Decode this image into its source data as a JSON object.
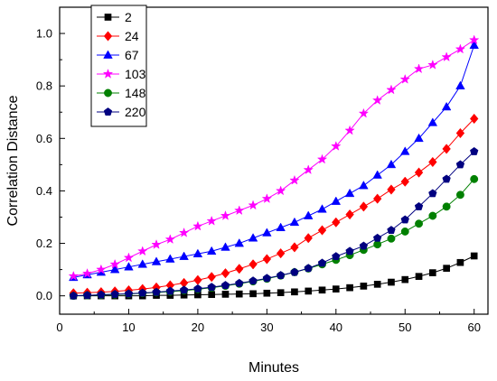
{
  "chart_data": {
    "type": "line",
    "title": "",
    "xlabel": "Minutes",
    "ylabel": "Correlation Distance",
    "xlim": [
      0,
      62
    ],
    "ylim": [
      -0.07,
      1.1
    ],
    "xticks": [
      0,
      10,
      20,
      30,
      40,
      50,
      60
    ],
    "yticks": [
      0.0,
      0.2,
      0.4,
      0.6,
      0.8,
      1.0
    ],
    "xtick_labels": [
      "0",
      "10",
      "20",
      "30",
      "40",
      "50",
      "60"
    ],
    "ytick_labels": [
      "0.0",
      "0.2",
      "0.4",
      "0.6",
      "0.8",
      "1.0"
    ],
    "grid": false,
    "legend_position": "top-left",
    "x": [
      2,
      4,
      6,
      8,
      10,
      12,
      14,
      16,
      18,
      20,
      22,
      24,
      26,
      28,
      30,
      32,
      34,
      36,
      38,
      40,
      42,
      44,
      46,
      48,
      50,
      52,
      54,
      56,
      58,
      60
    ],
    "series": [
      {
        "name": "2",
        "color": "#000000",
        "marker": "square",
        "values": [
          0.0,
          0.0,
          0.0,
          0.0,
          0.0,
          0.0,
          0.002,
          0.002,
          0.003,
          0.004,
          0.005,
          0.006,
          0.007,
          0.008,
          0.01,
          0.012,
          0.015,
          0.018,
          0.022,
          0.026,
          0.031,
          0.037,
          0.044,
          0.052,
          0.062,
          0.074,
          0.088,
          0.105,
          0.127,
          0.152
        ]
      },
      {
        "name": "24",
        "color": "#ff0000",
        "marker": "diamond",
        "values": [
          0.01,
          0.012,
          0.014,
          0.017,
          0.021,
          0.026,
          0.032,
          0.04,
          0.049,
          0.06,
          0.072,
          0.086,
          0.103,
          0.12,
          0.14,
          0.162,
          0.185,
          0.22,
          0.25,
          0.28,
          0.31,
          0.34,
          0.37,
          0.405,
          0.435,
          0.47,
          0.51,
          0.56,
          0.62,
          0.675
        ]
      },
      {
        "name": "67",
        "color": "#0000ff",
        "marker": "triangle",
        "values": [
          0.07,
          0.08,
          0.09,
          0.1,
          0.11,
          0.12,
          0.13,
          0.14,
          0.15,
          0.16,
          0.17,
          0.185,
          0.2,
          0.22,
          0.24,
          0.26,
          0.28,
          0.305,
          0.33,
          0.36,
          0.39,
          0.42,
          0.46,
          0.5,
          0.55,
          0.6,
          0.66,
          0.72,
          0.8,
          0.955
        ]
      },
      {
        "name": "103",
        "color": "#ff00ff",
        "marker": "star",
        "values": [
          0.075,
          0.085,
          0.1,
          0.12,
          0.145,
          0.17,
          0.195,
          0.215,
          0.24,
          0.265,
          0.285,
          0.305,
          0.325,
          0.345,
          0.37,
          0.4,
          0.44,
          0.48,
          0.52,
          0.57,
          0.63,
          0.695,
          0.745,
          0.785,
          0.825,
          0.865,
          0.88,
          0.91,
          0.94,
          0.975
        ]
      },
      {
        "name": "148",
        "color": "#008000",
        "marker": "circle",
        "values": [
          0.0,
          0.002,
          0.003,
          0.005,
          0.007,
          0.01,
          0.013,
          0.016,
          0.02,
          0.025,
          0.031,
          0.038,
          0.046,
          0.055,
          0.065,
          0.077,
          0.09,
          0.104,
          0.12,
          0.137,
          0.155,
          0.175,
          0.196,
          0.218,
          0.245,
          0.275,
          0.305,
          0.34,
          0.385,
          0.445
        ]
      },
      {
        "name": "220",
        "color": "#000080",
        "marker": "pentagon",
        "values": [
          0.0,
          0.002,
          0.004,
          0.006,
          0.008,
          0.011,
          0.014,
          0.018,
          0.022,
          0.027,
          0.033,
          0.04,
          0.048,
          0.057,
          0.067,
          0.078,
          0.09,
          0.105,
          0.125,
          0.15,
          0.17,
          0.19,
          0.22,
          0.25,
          0.29,
          0.34,
          0.39,
          0.445,
          0.5,
          0.55
        ]
      }
    ]
  }
}
